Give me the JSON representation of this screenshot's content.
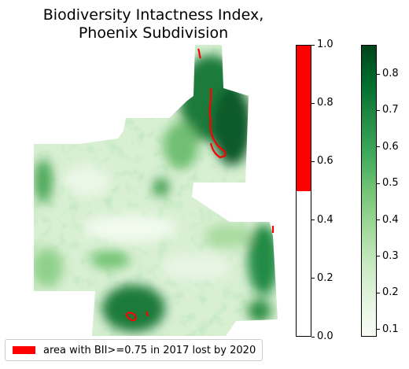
{
  "title_line1": "Biodiversity Intactness Index,",
  "title_line2": "Phoenix Subdivision",
  "legend": {
    "label": "area with BII>=0.75 in 2017 lost by 2020",
    "color": "#ff0000"
  },
  "colors": {
    "lost_area": "#ff0000",
    "greens_low": "#f7fcf5",
    "greens_high": "#00441b"
  },
  "chart_data": {
    "type": "map",
    "title": "Biodiversity Intactness Index,\nPhoenix Subdivision",
    "colorbars": [
      {
        "name": "lost-area",
        "range": [
          0.0,
          1.0
        ],
        "ticks": [
          "0.0",
          "0.2",
          "0.4",
          "0.6",
          "0.8",
          "1.0"
        ],
        "tick_values": [
          0.0,
          0.2,
          0.4,
          0.6,
          0.8,
          1.0
        ],
        "threshold": 0.5,
        "below_color": "#ffffff",
        "above_color": "#ff0000"
      },
      {
        "name": "bii",
        "colormap": "Greens",
        "range": [
          0.08,
          0.88
        ],
        "ticks": [
          "0.1",
          "0.2",
          "0.3",
          "0.4",
          "0.5",
          "0.6",
          "0.7",
          "0.8"
        ],
        "tick_values": [
          0.1,
          0.2,
          0.3,
          0.4,
          0.5,
          0.6,
          0.7,
          0.8
        ]
      }
    ]
  }
}
